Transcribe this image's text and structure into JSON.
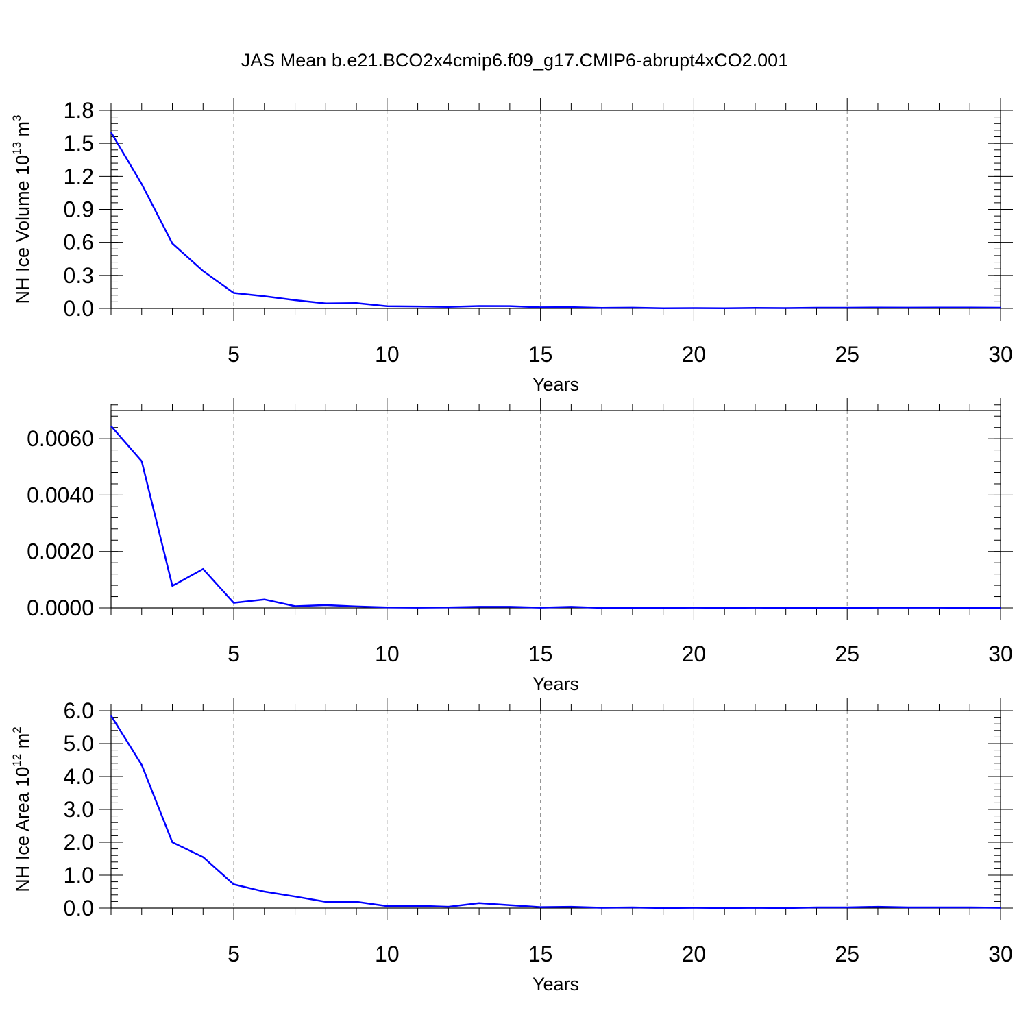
{
  "figure_title": "JAS Mean b.e21.BCO2x4cmip6.f09_g17.CMIP6-abrupt4xCO2.001",
  "colors": {
    "line": "#0000ff",
    "axes": "#000000",
    "grid": "#888888"
  },
  "chart_data": [
    {
      "type": "line",
      "title": "",
      "xlabel": "Years",
      "ylabel": {
        "main": "NH Ice Volume 10",
        "sup": "13",
        "unit": " m",
        "unit_sup": "3"
      },
      "xlim": [
        1,
        30
      ],
      "ylim": [
        0,
        1.8
      ],
      "x_ticks": [
        5,
        10,
        15,
        20,
        25,
        30
      ],
      "x_tick_labels": [
        "5",
        "10",
        "15",
        "20",
        "25",
        "30"
      ],
      "y_ticks": [
        0,
        0.3,
        0.6,
        0.9,
        1.2,
        1.5,
        1.8
      ],
      "y_tick_labels": [
        "0.0",
        "0.3",
        "0.6",
        "0.9",
        "1.2",
        "1.5",
        "1.8"
      ],
      "y_minor_step": 0.06,
      "grid": "vertical dashed at major x ticks",
      "x": [
        1,
        2,
        3,
        4,
        5,
        6,
        7,
        8,
        9,
        10,
        11,
        12,
        13,
        14,
        15,
        16,
        17,
        18,
        19,
        20,
        21,
        22,
        23,
        24,
        25,
        26,
        27,
        28,
        29,
        30
      ],
      "series": [
        {
          "values": [
            1.6,
            1.13,
            0.59,
            0.34,
            0.14,
            0.11,
            0.075,
            0.045,
            0.048,
            0.02,
            0.018,
            0.014,
            0.022,
            0.021,
            0.01,
            0.012,
            0.005,
            0.007,
            0.002,
            0.003,
            0.002,
            0.005,
            0.003,
            0.006,
            0.006,
            0.008,
            0.007,
            0.008,
            0.008,
            0.006
          ]
        }
      ]
    },
    {
      "type": "line",
      "title": "",
      "xlabel": "Years",
      "ylabel": null,
      "xlim": [
        1,
        30
      ],
      "ylim": [
        0,
        0.007
      ],
      "x_ticks": [
        5,
        10,
        15,
        20,
        25,
        30
      ],
      "x_tick_labels": [
        "5",
        "10",
        "15",
        "20",
        "25",
        "30"
      ],
      "y_ticks": [
        0,
        0.002,
        0.004,
        0.006
      ],
      "y_tick_labels": [
        "0.0000",
        "0.0020",
        "0.0040",
        "0.0060"
      ],
      "y_minor_step": 0.0004,
      "grid": "vertical dashed at major x ticks",
      "x": [
        1,
        2,
        3,
        4,
        5,
        6,
        7,
        8,
        9,
        10,
        11,
        12,
        13,
        14,
        15,
        16,
        17,
        18,
        19,
        20,
        21,
        22,
        23,
        24,
        25,
        26,
        27,
        28,
        29,
        30
      ],
      "series": [
        {
          "values": [
            0.00645,
            0.0052,
            0.00078,
            0.00138,
            0.00018,
            0.0003,
            6e-05,
            0.0001,
            5e-05,
            2e-05,
            1e-05,
            2e-05,
            4e-05,
            4e-05,
            1e-05,
            4e-05,
            0.0,
            0.0,
            0.0,
            1e-05,
            0.0,
            1e-05,
            0.0,
            0.0,
            0.0,
            1e-05,
            1e-05,
            1e-05,
            0.0,
            0.0
          ]
        }
      ]
    },
    {
      "type": "line",
      "title": "",
      "xlabel": "Years",
      "ylabel": {
        "main": "NH Ice Area 10",
        "sup": "12",
        "unit": " m",
        "unit_sup": "2"
      },
      "xlim": [
        1,
        30
      ],
      "ylim": [
        0,
        6.0
      ],
      "x_ticks": [
        5,
        10,
        15,
        20,
        25,
        30
      ],
      "x_tick_labels": [
        "5",
        "10",
        "15",
        "20",
        "25",
        "30"
      ],
      "y_ticks": [
        0,
        1,
        2,
        3,
        4,
        5,
        6
      ],
      "y_tick_labels": [
        "0.0",
        "1.0",
        "2.0",
        "3.0",
        "4.0",
        "5.0",
        "6.0"
      ],
      "y_minor_step": 0.2,
      "grid": "vertical dashed at major x ticks",
      "x": [
        1,
        2,
        3,
        4,
        5,
        6,
        7,
        8,
        9,
        10,
        11,
        12,
        13,
        14,
        15,
        16,
        17,
        18,
        19,
        20,
        21,
        22,
        23,
        24,
        25,
        26,
        27,
        28,
        29,
        30
      ],
      "series": [
        {
          "values": [
            5.85,
            4.35,
            2.0,
            1.55,
            0.72,
            0.5,
            0.35,
            0.19,
            0.19,
            0.06,
            0.07,
            0.04,
            0.15,
            0.09,
            0.03,
            0.04,
            0.01,
            0.02,
            0.0,
            0.01,
            0.0,
            0.01,
            0.0,
            0.02,
            0.02,
            0.04,
            0.02,
            0.02,
            0.02,
            0.01
          ]
        }
      ]
    }
  ]
}
